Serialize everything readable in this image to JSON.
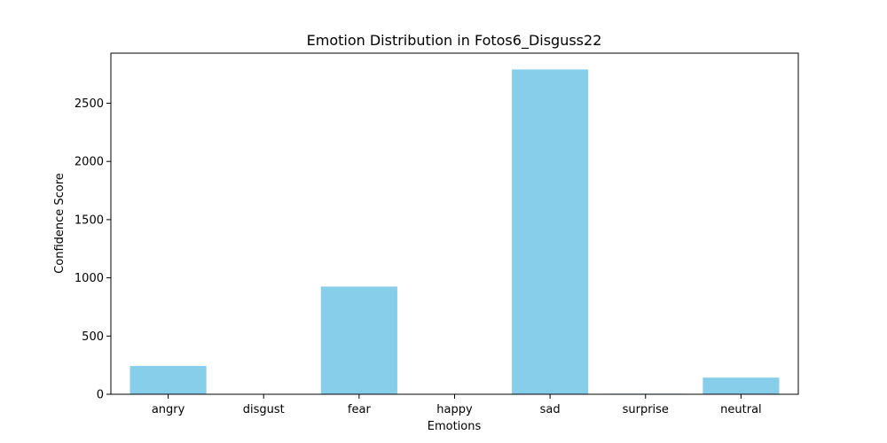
{
  "chart_data": {
    "type": "bar",
    "title": "Emotion Distribution in Fotos6_Disguss22",
    "xlabel": "Emotions",
    "ylabel": "Confidence Score",
    "categories": [
      "angry",
      "disgust",
      "fear",
      "happy",
      "sad",
      "surprise",
      "neutral"
    ],
    "values": [
      243,
      0.5,
      925,
      0.5,
      2790,
      5,
      143
    ],
    "ylim": [
      0,
      2930
    ],
    "yticks": [
      0,
      500,
      1000,
      1500,
      2000,
      2500
    ],
    "bar_color": "#87ceeb",
    "grid": false,
    "legend": "none"
  }
}
